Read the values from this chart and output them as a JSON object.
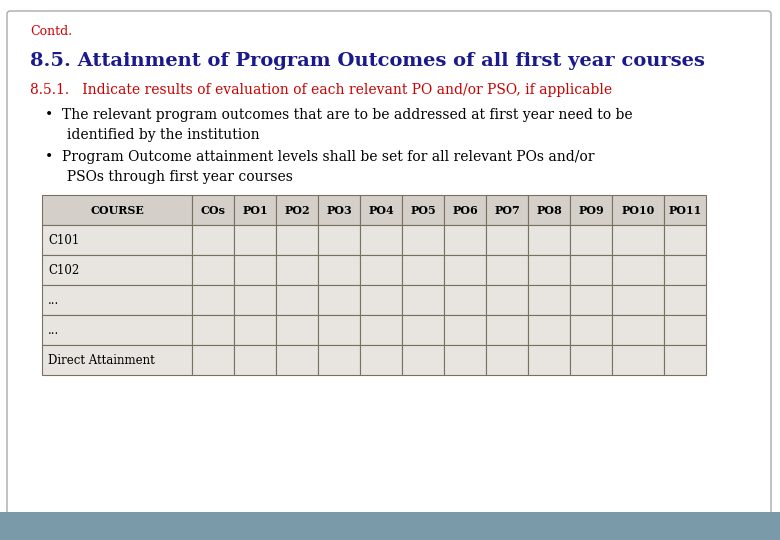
{
  "title": "8.5. Attainment of Program Outcomes of all first year courses",
  "contd_label": "Contd.",
  "subtitle": "8.5.1.   Indicate results of evaluation of each relevant PO and/or PSO, if applicable",
  "bullet1_line1": "•  The relevant program outcomes that are to be addressed at first year need to be",
  "bullet1_line2": "     identified by the institution",
  "bullet2_line1": "•  Program Outcome attainment levels shall be set for all relevant POs and/or",
  "bullet2_line2": "     PSOs through first year courses",
  "table_headers": [
    "COURSE",
    "COs",
    "PO1",
    "PO2",
    "PO3",
    "PO4",
    "PO5",
    "PO6",
    "PO7",
    "PO8",
    "PO9",
    "PO10",
    "PO11"
  ],
  "table_rows": [
    "C101",
    "C102",
    "...",
    "...",
    "Direct Attainment"
  ],
  "bg_color": "#ffffff",
  "title_color": "#1a1a8c",
  "subtitle_color": "#cc0000",
  "text_color": "#000000",
  "contd_color": "#cc0000",
  "table_header_bg": "#d4cfc9",
  "table_row_bg1": "#e8e4df",
  "table_row_bg2": "#e8e4df",
  "table_border_color": "#7a7060",
  "footer_color": "#7a9aaa",
  "outer_border_color": "#aaaaaa"
}
